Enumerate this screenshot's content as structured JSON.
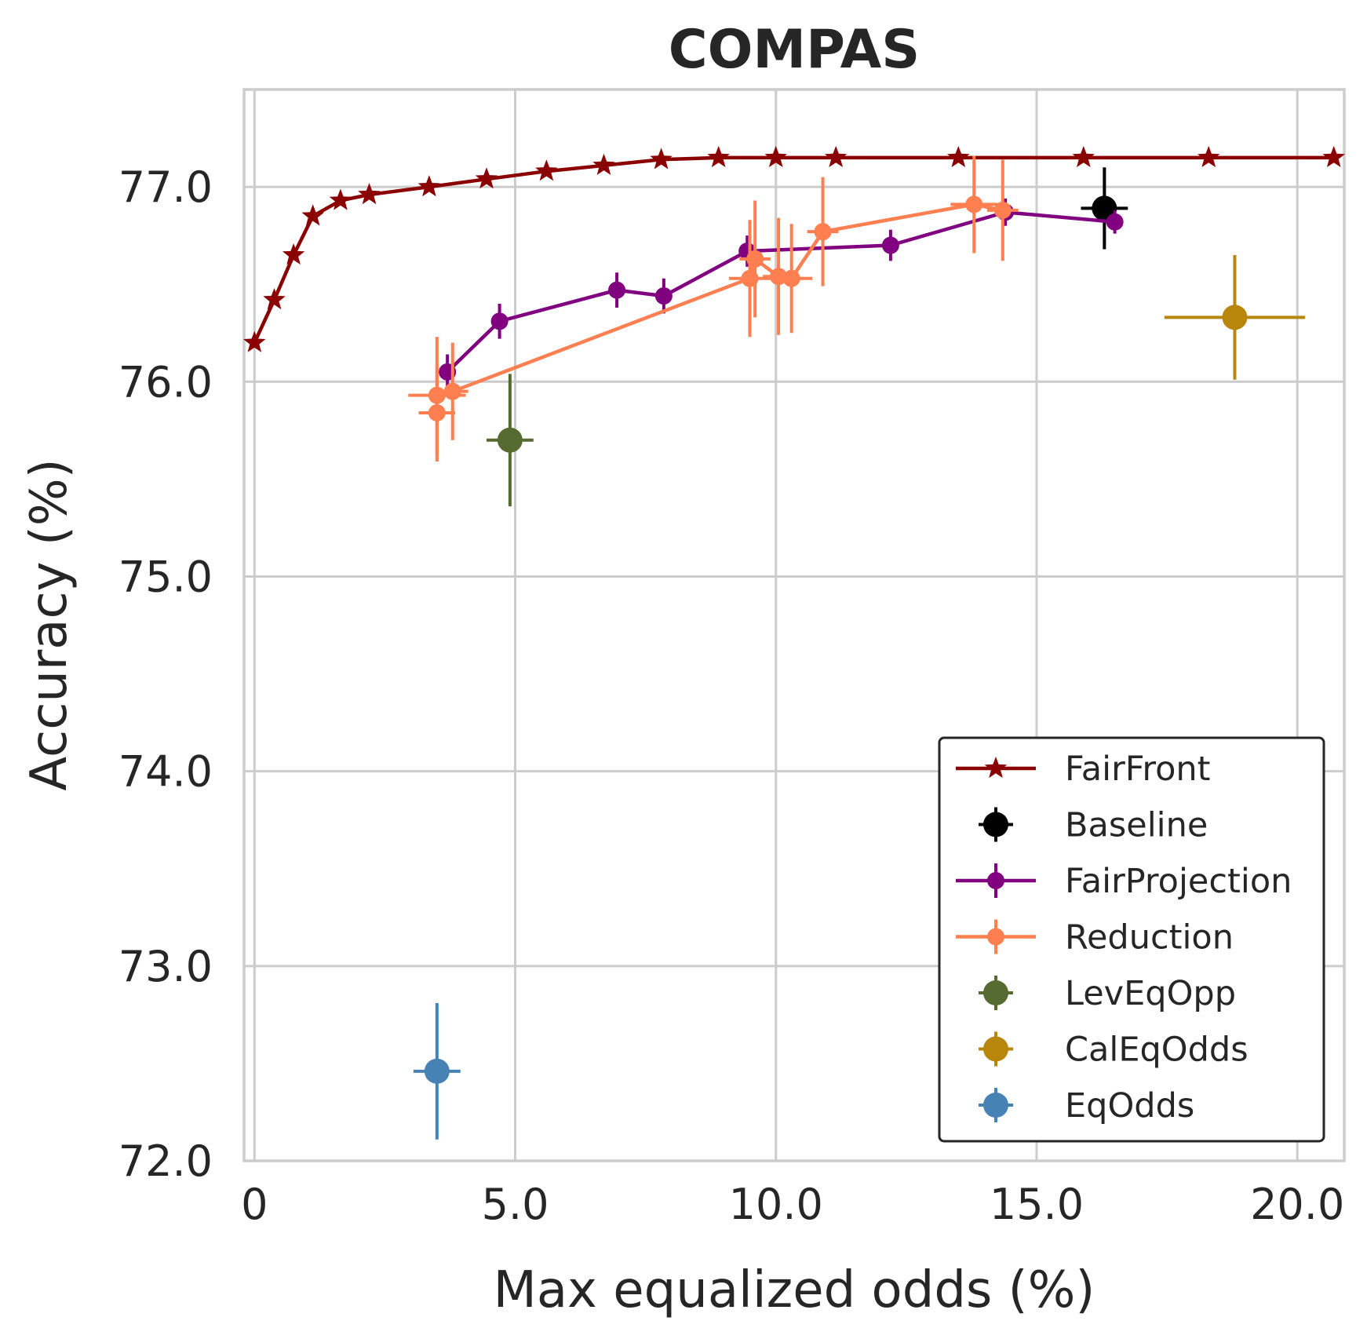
{
  "chart_data": {
    "type": "scatter",
    "title": "COMPAS",
    "xlabel": "Max equalized odds (%)",
    "ylabel": "Accuracy (%)",
    "xlim": [
      -0.2,
      20.9
    ],
    "ylim": [
      72.0,
      77.5
    ],
    "xticks": [
      0,
      5,
      10,
      15,
      20
    ],
    "xtick_labels": [
      "0",
      "5.0",
      "10.0",
      "15.0",
      "20.0"
    ],
    "yticks": [
      72,
      73,
      74,
      75,
      76,
      77
    ],
    "ytick_labels": [
      "72.0",
      "73.0",
      "74.0",
      "75.0",
      "76.0",
      "77.0"
    ],
    "grid": true,
    "legend_position": "lower-right",
    "series": [
      {
        "name": "FairFront",
        "color": "#8b0000",
        "marker": "star",
        "line": true,
        "points": [
          {
            "x": 0.0,
            "y": 76.2
          },
          {
            "x": 0.38,
            "y": 76.42
          },
          {
            "x": 0.75,
            "y": 76.65
          },
          {
            "x": 1.12,
            "y": 76.85
          },
          {
            "x": 1.65,
            "y": 76.93
          },
          {
            "x": 2.2,
            "y": 76.96
          },
          {
            "x": 3.35,
            "y": 77.0
          },
          {
            "x": 4.45,
            "y": 77.04
          },
          {
            "x": 5.6,
            "y": 77.08
          },
          {
            "x": 6.7,
            "y": 77.11
          },
          {
            "x": 7.8,
            "y": 77.14
          },
          {
            "x": 8.9,
            "y": 77.15
          },
          {
            "x": 10.0,
            "y": 77.15
          },
          {
            "x": 11.15,
            "y": 77.15
          },
          {
            "x": 13.5,
            "y": 77.15
          },
          {
            "x": 15.9,
            "y": 77.15
          },
          {
            "x": 18.3,
            "y": 77.15
          },
          {
            "x": 20.7,
            "y": 77.15
          }
        ]
      },
      {
        "name": "Baseline",
        "color": "#000000",
        "marker": "circle",
        "line": false,
        "points": [
          {
            "x": 16.3,
            "y": 76.89,
            "xerr": 0.45,
            "yerr": 0.21
          }
        ]
      },
      {
        "name": "FairProjection",
        "color": "#800080",
        "marker": "circle",
        "line": true,
        "points": [
          {
            "x": 3.7,
            "y": 76.05,
            "yerr": 0.09
          },
          {
            "x": 4.7,
            "y": 76.31,
            "yerr": 0.09
          },
          {
            "x": 6.95,
            "y": 76.47,
            "yerr": 0.09
          },
          {
            "x": 7.85,
            "y": 76.44,
            "yerr": 0.09
          },
          {
            "x": 9.45,
            "y": 76.67,
            "yerr": 0.08
          },
          {
            "x": 12.2,
            "y": 76.7,
            "yerr": 0.08
          },
          {
            "x": 14.4,
            "y": 76.87,
            "yerr": 0.07
          },
          {
            "x": 16.5,
            "y": 76.82,
            "yerr": 0.06
          }
        ]
      },
      {
        "name": "Reduction",
        "color": "#ff7f50",
        "marker": "circle",
        "line": true,
        "points": [
          {
            "x": 3.5,
            "y": 75.84,
            "xerr": 0.35,
            "yerr": 0.25
          },
          {
            "x": 3.5,
            "y": 75.93,
            "xerr": 0.55,
            "yerr": 0.3
          },
          {
            "x": 3.8,
            "y": 75.95,
            "xerr": 0.3,
            "yerr": 0.25
          },
          {
            "x": 9.5,
            "y": 76.53,
            "xerr": 0.4,
            "yerr": 0.3
          },
          {
            "x": 9.6,
            "y": 76.63,
            "xerr": 0.3,
            "yerr": 0.3
          },
          {
            "x": 10.05,
            "y": 76.54,
            "xerr": 0.3,
            "yerr": 0.3
          },
          {
            "x": 10.3,
            "y": 76.53,
            "xerr": 0.4,
            "yerr": 0.28
          },
          {
            "x": 10.9,
            "y": 76.77,
            "xerr": 0.3,
            "yerr": 0.28
          },
          {
            "x": 13.8,
            "y": 76.91,
            "xerr": 0.45,
            "yerr": 0.25
          },
          {
            "x": 14.35,
            "y": 76.88,
            "xerr": 0.3,
            "yerr": 0.26
          }
        ]
      },
      {
        "name": "LevEqOpp",
        "color": "#556b2f",
        "marker": "circle",
        "line": false,
        "points": [
          {
            "x": 4.9,
            "y": 75.7,
            "xerr": 0.45,
            "yerr": 0.34
          }
        ]
      },
      {
        "name": "CalEqOdds",
        "color": "#b8860b",
        "marker": "circle",
        "line": false,
        "points": [
          {
            "x": 18.8,
            "y": 76.33,
            "xerr": 1.35,
            "yerr": 0.32
          }
        ]
      },
      {
        "name": "EqOdds",
        "color": "#4682b4",
        "marker": "circle",
        "line": false,
        "points": [
          {
            "x": 3.5,
            "y": 72.46,
            "xerr": 0.45,
            "yerr": 0.35
          }
        ]
      }
    ]
  }
}
